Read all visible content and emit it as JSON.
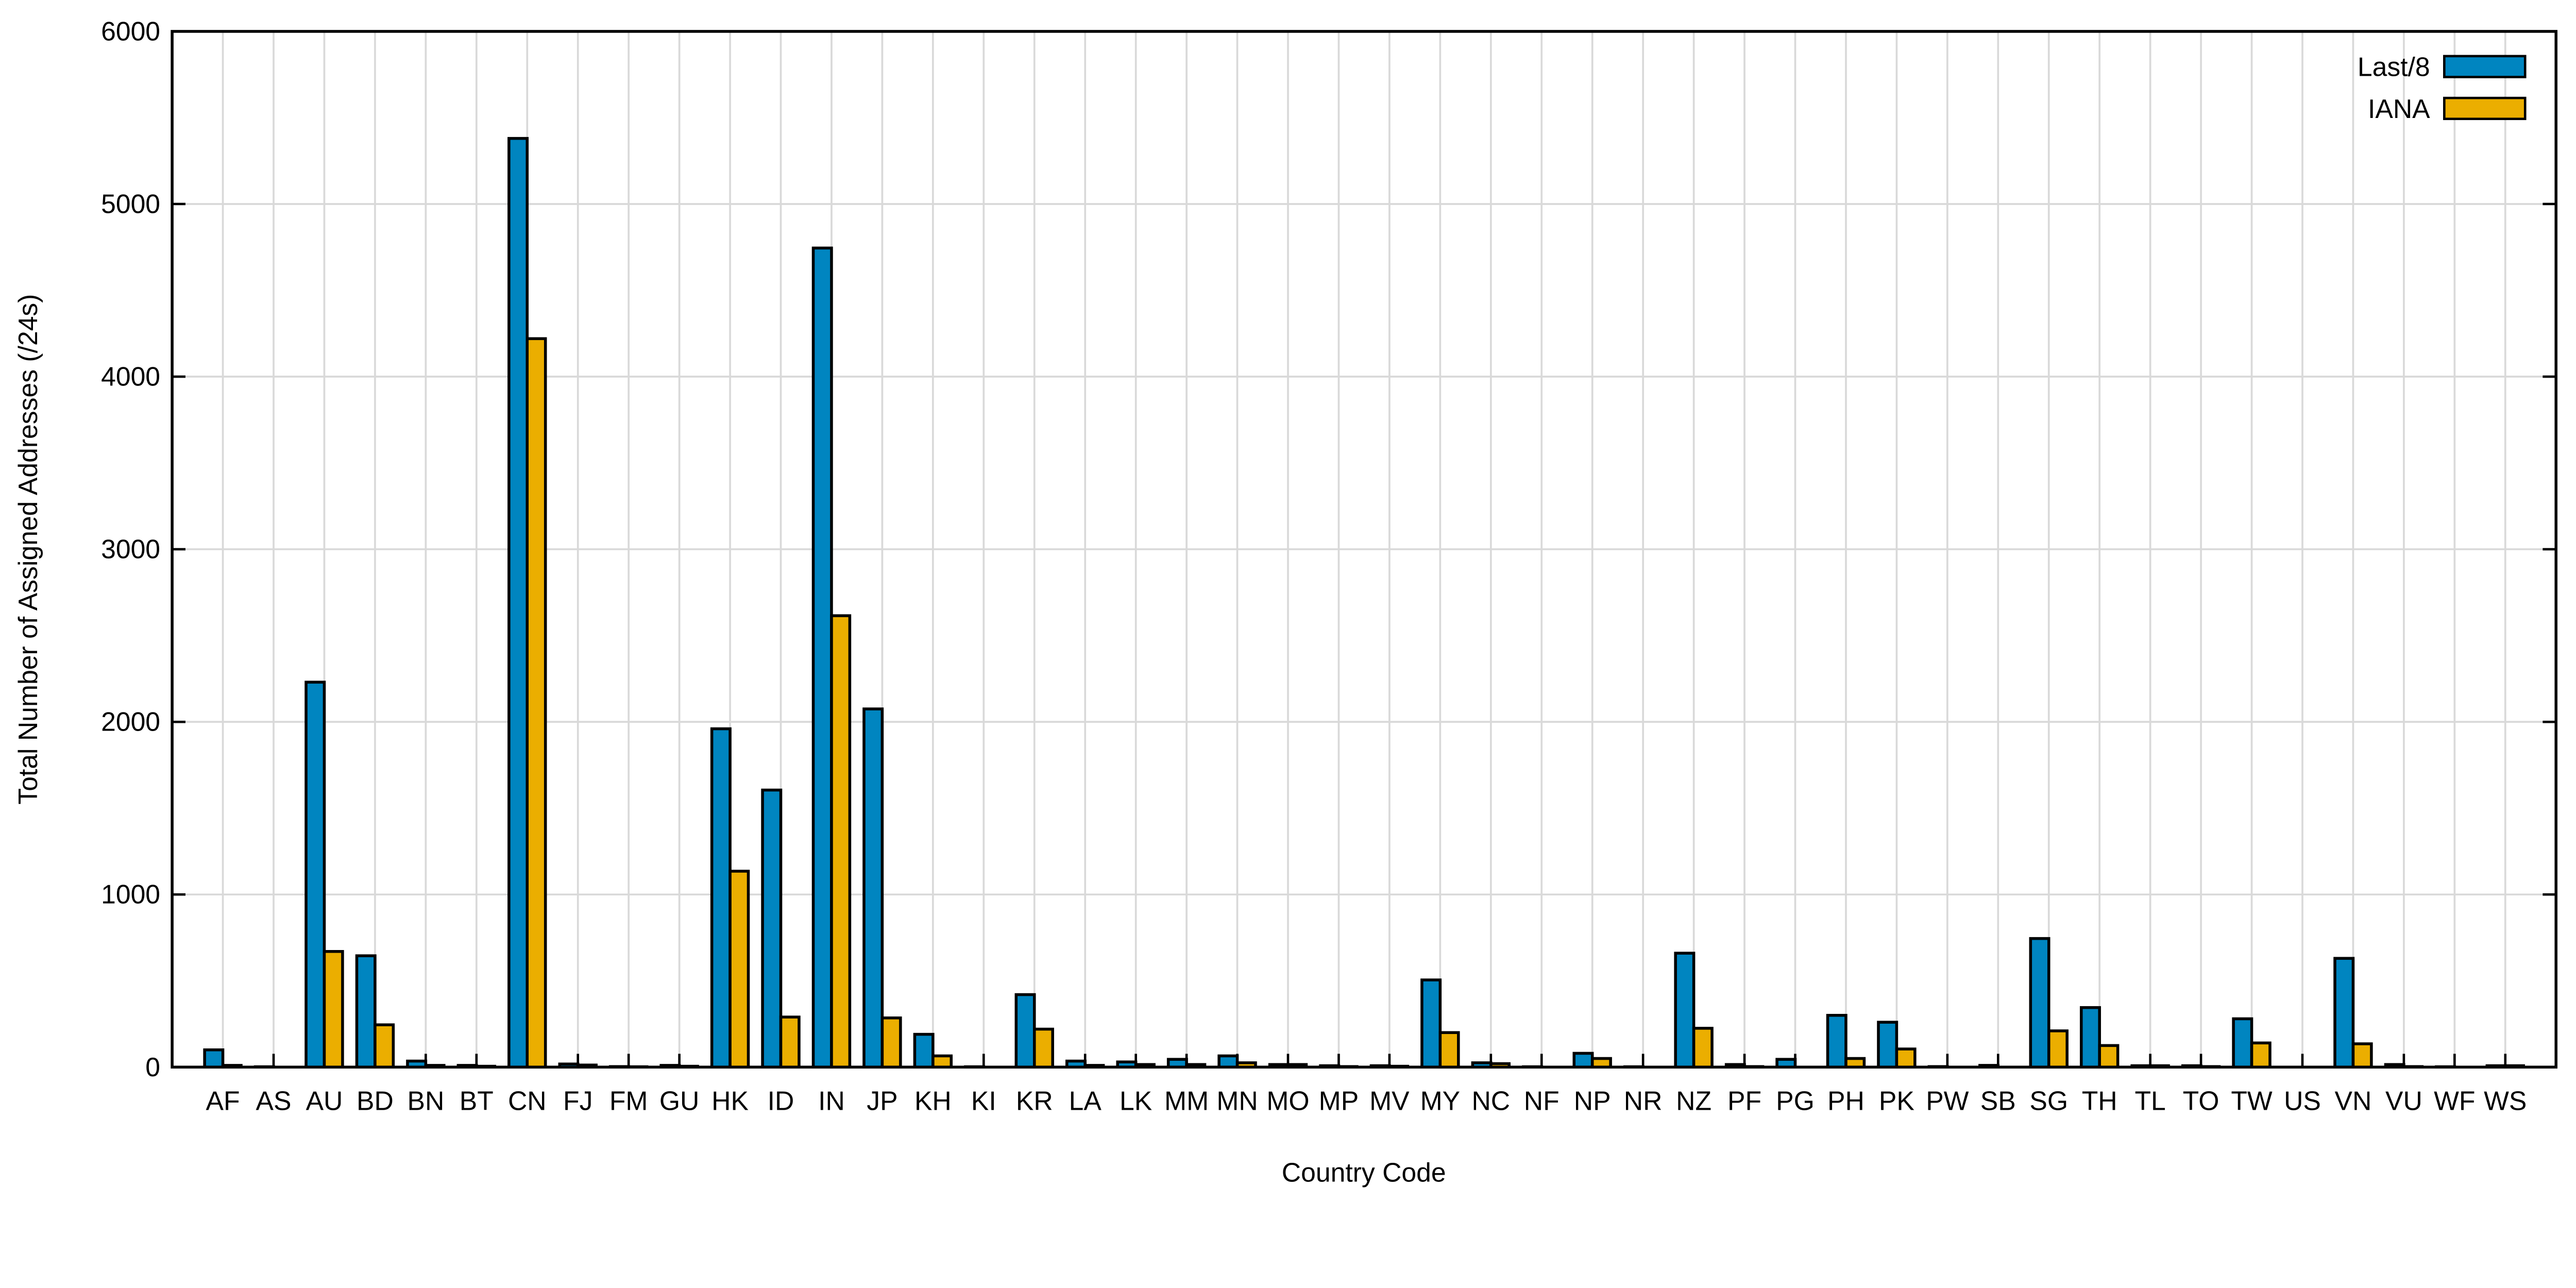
{
  "chart_data": {
    "type": "bar",
    "title": "",
    "xlabel": "Country Code",
    "ylabel": "Total Number of Assigned Addresses (/24s)",
    "ylim": [
      0,
      6000
    ],
    "yticks": [
      0,
      1000,
      2000,
      3000,
      4000,
      5000,
      6000
    ],
    "grid": true,
    "legend_position": "top-right",
    "categories": [
      "AF",
      "AS",
      "AU",
      "BD",
      "BN",
      "BT",
      "CN",
      "FJ",
      "FM",
      "GU",
      "HK",
      "ID",
      "IN",
      "JP",
      "KH",
      "KI",
      "KR",
      "LA",
      "LK",
      "MM",
      "MN",
      "MO",
      "MP",
      "MV",
      "MY",
      "NC",
      "NF",
      "NP",
      "NR",
      "NZ",
      "PF",
      "PG",
      "PH",
      "PK",
      "PW",
      "SB",
      "SG",
      "TH",
      "TL",
      "TO",
      "TW",
      "US",
      "VN",
      "VU",
      "WF",
      "WS"
    ],
    "series": [
      {
        "name": "Last/8",
        "color": "#0085C0",
        "values": [
          100,
          2,
          2230,
          645,
          35,
          10,
          5380,
          18,
          3,
          10,
          1960,
          1605,
          4745,
          2075,
          190,
          2,
          420,
          35,
          30,
          45,
          65,
          15,
          8,
          8,
          505,
          25,
          2,
          80,
          2,
          660,
          15,
          45,
          300,
          260,
          3,
          10,
          745,
          345,
          8,
          8,
          280,
          0,
          630,
          15,
          2,
          8
        ]
      },
      {
        "name": "IANA",
        "color": "#EBAE00",
        "values": [
          10,
          0,
          670,
          245,
          10,
          5,
          4220,
          12,
          2,
          5,
          1135,
          290,
          2615,
          285,
          65,
          0,
          220,
          10,
          15,
          15,
          25,
          15,
          3,
          5,
          200,
          20,
          0,
          50,
          0,
          225,
          3,
          0,
          50,
          105,
          0,
          0,
          210,
          125,
          8,
          3,
          140,
          0,
          135,
          3,
          0,
          8
        ]
      }
    ]
  }
}
